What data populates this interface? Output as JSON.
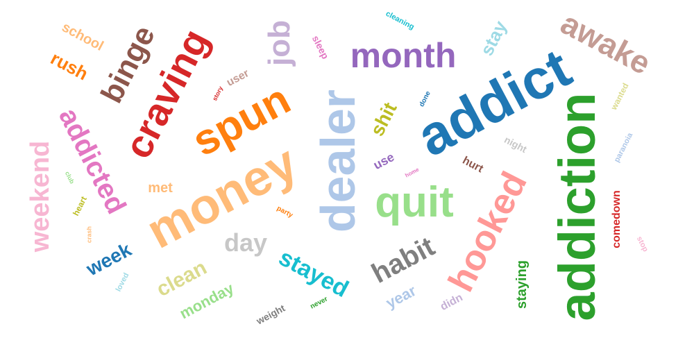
{
  "words": [
    {
      "text": "addict",
      "color": "#1f77b4"
    },
    {
      "text": "addiction",
      "color": "#2ca02c"
    },
    {
      "text": "money",
      "color": "#ffbb78"
    },
    {
      "text": "dealer",
      "color": "#aec7e8"
    },
    {
      "text": "spun",
      "color": "#ff7f0e"
    },
    {
      "text": "craving",
      "color": "#d62728"
    },
    {
      "text": "hooked",
      "color": "#ff9896"
    },
    {
      "text": "quit",
      "color": "#98df8a"
    },
    {
      "text": "month",
      "color": "#9467bd"
    },
    {
      "text": "awake",
      "color": "#c49c94"
    },
    {
      "text": "binge",
      "color": "#8c564b"
    },
    {
      "text": "addicted",
      "color": "#e377c2"
    },
    {
      "text": "weekend",
      "color": "#f7b6d2"
    },
    {
      "text": "job",
      "color": "#c5b0d5"
    },
    {
      "text": "habit",
      "color": "#7f7f7f"
    },
    {
      "text": "stayed",
      "color": "#17becf"
    },
    {
      "text": "clean",
      "color": "#dbdb8d"
    },
    {
      "text": "day",
      "color": "#c7c7c7"
    },
    {
      "text": "week",
      "color": "#1f77b4"
    },
    {
      "text": "shit",
      "color": "#bcbd22"
    },
    {
      "text": "stay",
      "color": "#9edae5"
    },
    {
      "text": "rush",
      "color": "#ff7f0e"
    },
    {
      "text": "school",
      "color": "#ffbb78"
    },
    {
      "text": "staying",
      "color": "#2ca02c"
    },
    {
      "text": "year",
      "color": "#aec7e8"
    },
    {
      "text": "monday",
      "color": "#98df8a"
    },
    {
      "text": "comedown",
      "color": "#d62728"
    },
    {
      "text": "met",
      "color": "#ffbb78"
    },
    {
      "text": "use",
      "color": "#9467bd"
    },
    {
      "text": "hurt",
      "color": "#8c564b"
    },
    {
      "text": "didn",
      "color": "#c5b0d5"
    },
    {
      "text": "user",
      "color": "#c49c94"
    },
    {
      "text": "weight",
      "color": "#7f7f7f"
    },
    {
      "text": "sleep",
      "color": "#e377c2"
    },
    {
      "text": "night",
      "color": "#c7c7c7"
    },
    {
      "text": "wanted",
      "color": "#dbdb8d"
    },
    {
      "text": "paranoia",
      "color": "#aec7e8"
    },
    {
      "text": "cleaning",
      "color": "#17becf"
    },
    {
      "text": "stop",
      "color": "#f7b6d2"
    },
    {
      "text": "heart",
      "color": "#bcbd22"
    },
    {
      "text": "loved",
      "color": "#9edae5"
    },
    {
      "text": "never",
      "color": "#2ca02c"
    },
    {
      "text": "party",
      "color": "#ff7f0e"
    },
    {
      "text": "done",
      "color": "#1f77b4"
    },
    {
      "text": "story",
      "color": "#d62728"
    },
    {
      "text": "home",
      "color": "#e377c2"
    },
    {
      "text": "crash",
      "color": "#ffbb78"
    },
    {
      "text": "club",
      "color": "#98df8a"
    }
  ]
}
